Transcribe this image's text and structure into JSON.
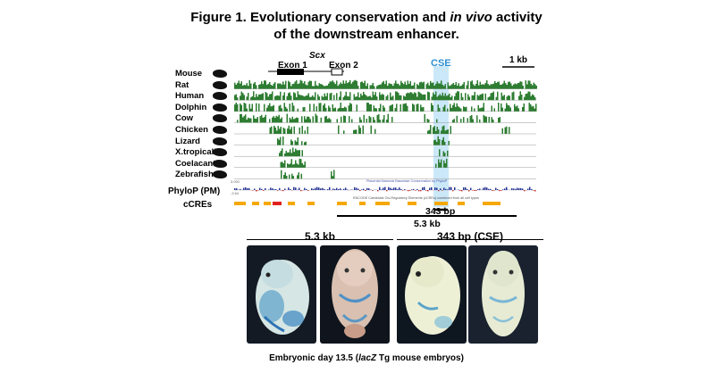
{
  "figure": {
    "title_prefix": "Figure 1. Evolutionary conservation and ",
    "title_italic": "in vivo",
    "title_suffix": " activity",
    "title_line2": "of the downstream enhancer."
  },
  "gene": {
    "name": "Scx",
    "exon1": "Exon 1",
    "exon2": "Exon 2",
    "enhancer": "CSE",
    "scale_bar": "1 kb"
  },
  "species": [
    {
      "name": "Mouse",
      "icon": "mouse-icon"
    },
    {
      "name": "Rat",
      "icon": "rat-icon"
    },
    {
      "name": "Human",
      "icon": "human-icon"
    },
    {
      "name": "Dolphin",
      "icon": "dolphin-icon"
    },
    {
      "name": "Cow",
      "icon": "cow-icon"
    },
    {
      "name": "Chicken",
      "icon": "chicken-icon"
    },
    {
      "name": "Lizard",
      "icon": "lizard-icon"
    },
    {
      "name": "X.tropicalis",
      "icon": "frog-icon"
    },
    {
      "name": "Coelacanth",
      "icon": "coelacanth-icon"
    },
    {
      "name": "Zebrafish",
      "icon": "zebrafish-icon"
    }
  ],
  "tracks": {
    "phylop_label": "PhyloP (PM)",
    "phylop_caption": "Placental Mammal Basewise Conservation by PhyloP",
    "phylop_max": "3.092",
    "phylop_min": "-3.54",
    "ccre_label": "cCREs",
    "ccre_caption": "ENCODE Candidate Cis-Regulatory Elements (cCREs) combined from all cell types"
  },
  "constructs": {
    "short": "343 bp",
    "long": "5.3 kb"
  },
  "embryos": {
    "group1_title": "5.3 kb",
    "group2_title": "343 bp (CSE)",
    "caption_prefix": "Embryonic day 13.5 (",
    "caption_italic": "lacZ",
    "caption_suffix": " Tg mouse embryos)"
  },
  "colors": {
    "conservation": "#2e7d32",
    "highlight": "#7fc8ef",
    "ccre": "#f5a800",
    "ccre_promoter": "#e0201b",
    "phylop": "#283593"
  }
}
